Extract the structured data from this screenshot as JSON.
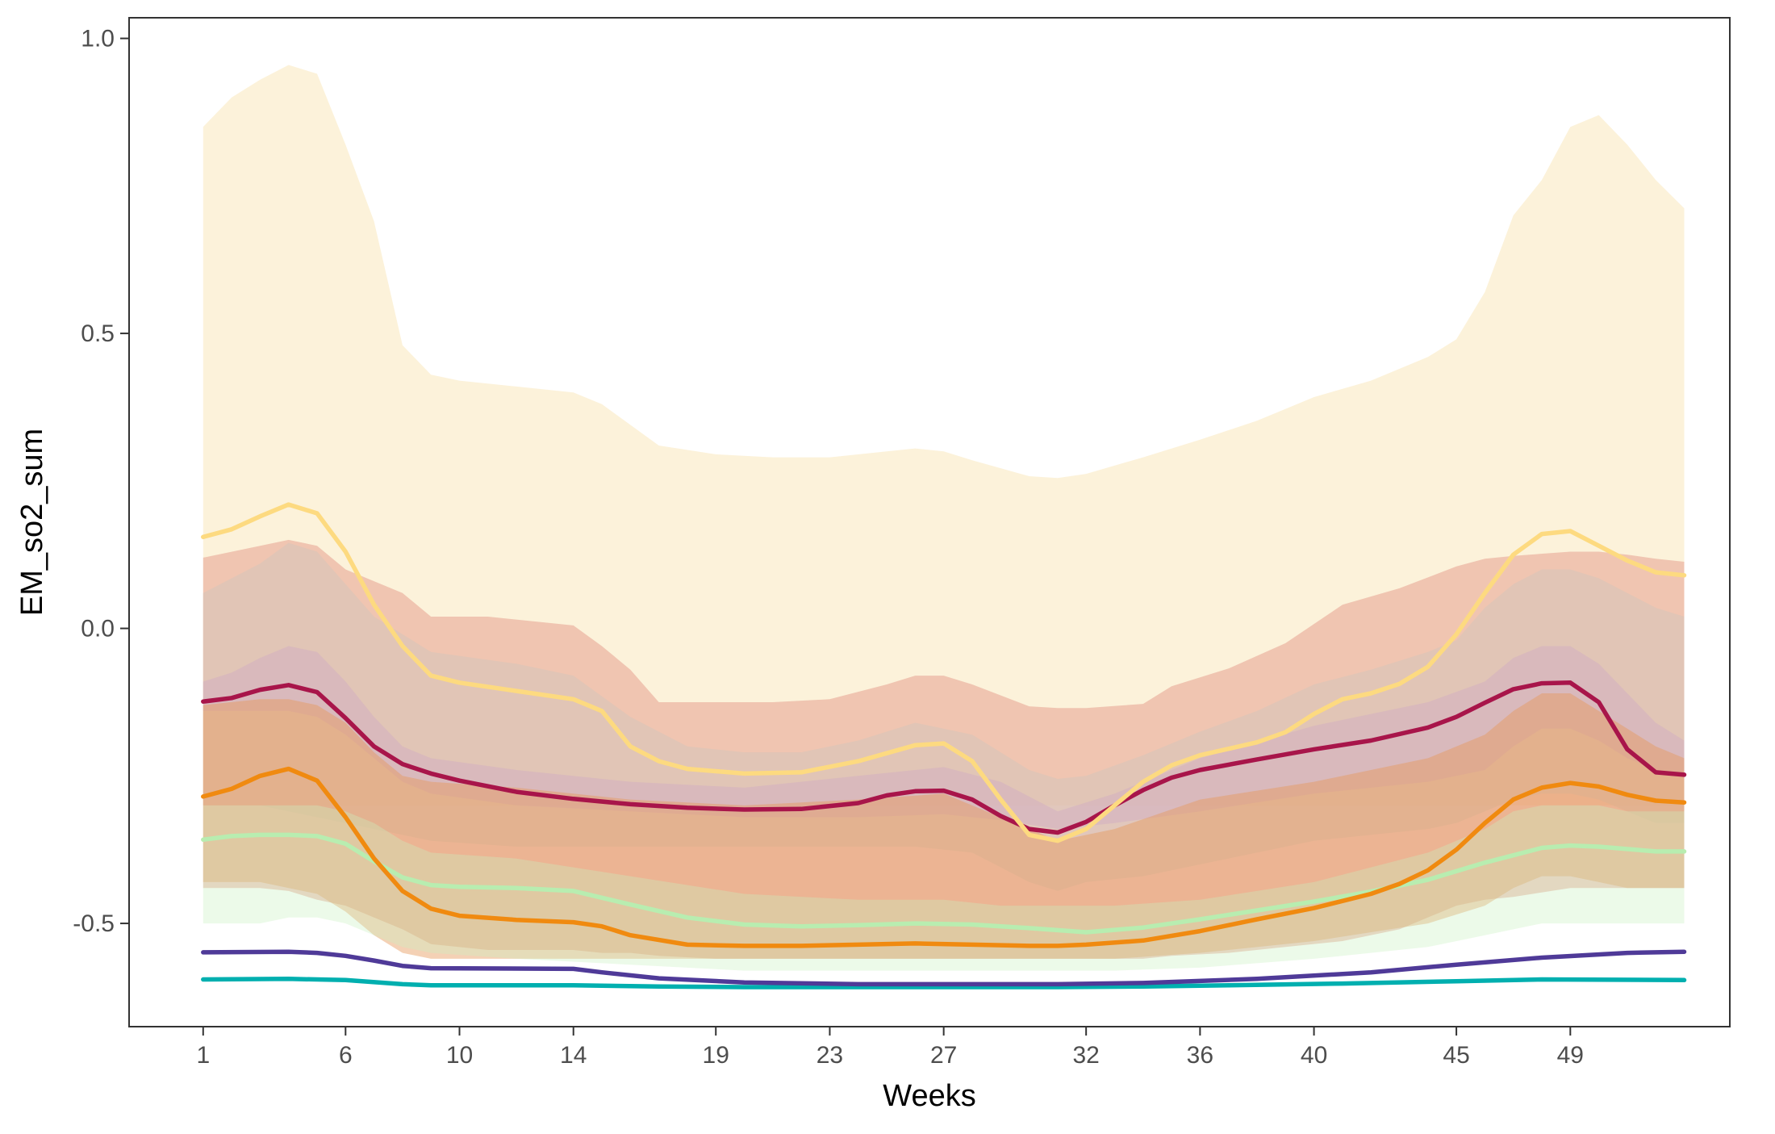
{
  "chart_data": {
    "type": "line",
    "title": "",
    "xlabel": "Weeks",
    "ylabel": "EM_so2_sum",
    "xlim": [
      -1.6,
      54.6
    ],
    "ylim": [
      -0.675,
      1.035
    ],
    "x_ticks": [
      1,
      6,
      10,
      14,
      19,
      23,
      27,
      32,
      36,
      40,
      45,
      49
    ],
    "y_ticks": [
      1.0,
      0.5,
      0.0,
      -0.5
    ],
    "y_tick_labels": [
      "1.0",
      "0.5",
      "0.0",
      "-0.5"
    ],
    "grid": false,
    "legend": "none",
    "bands": [
      {
        "color": "#FCF0D4",
        "opacity": 0.85,
        "x": [
          1,
          2,
          3,
          4,
          5,
          6,
          7,
          8,
          9,
          10,
          12,
          14,
          15,
          17,
          19,
          21,
          23,
          25,
          26,
          27,
          28,
          30,
          31,
          32,
          34,
          36,
          38,
          40,
          42,
          44,
          45,
          46,
          47,
          48,
          49,
          50,
          51,
          52,
          53
        ],
        "upper": [
          0.85,
          0.9,
          0.93,
          0.955,
          0.94,
          0.82,
          0.69,
          0.48,
          0.43,
          0.42,
          0.41,
          0.4,
          0.38,
          0.31,
          0.295,
          0.29,
          0.29,
          0.3,
          0.305,
          0.3,
          0.285,
          0.258,
          0.255,
          0.262,
          0.29,
          0.32,
          0.352,
          0.392,
          0.42,
          0.46,
          0.49,
          0.57,
          0.7,
          0.76,
          0.85,
          0.87,
          0.82,
          0.76,
          0.712
        ],
        "lower": [
          -0.3,
          -0.3,
          -0.3,
          -0.3,
          -0.3,
          -0.3,
          -0.3,
          -0.3,
          -0.3,
          -0.3,
          -0.3,
          -0.3,
          -0.3,
          -0.3,
          -0.3,
          -0.3,
          -0.3,
          -0.3,
          -0.3,
          -0.3,
          -0.3,
          -0.3,
          -0.3,
          -0.3,
          -0.3,
          -0.3,
          -0.3,
          -0.3,
          -0.3,
          -0.3,
          -0.3,
          -0.3,
          -0.3,
          -0.3,
          -0.3,
          -0.3,
          -0.3,
          -0.3,
          -0.3
        ]
      },
      {
        "color": "#E6A090",
        "opacity": 0.55,
        "x": [
          1,
          3,
          4,
          5,
          6,
          8,
          9,
          11,
          14,
          15,
          16,
          17,
          19,
          21,
          23,
          25,
          26,
          27,
          28,
          30,
          31,
          32,
          34,
          35,
          37,
          39,
          41,
          43,
          45,
          46,
          47,
          49,
          50,
          51,
          52,
          53
        ],
        "upper": [
          0.12,
          0.14,
          0.15,
          0.14,
          0.1,
          0.06,
          0.02,
          0.02,
          0.005,
          -0.03,
          -0.07,
          -0.125,
          -0.125,
          -0.125,
          -0.12,
          -0.095,
          -0.08,
          -0.08,
          -0.095,
          -0.132,
          -0.135,
          -0.135,
          -0.128,
          -0.098,
          -0.068,
          -0.025,
          0.04,
          0.068,
          0.105,
          0.118,
          0.123,
          0.13,
          0.13,
          0.125,
          0.118,
          0.113
        ],
        "lower": [
          -0.44,
          -0.44,
          -0.445,
          -0.46,
          -0.47,
          -0.51,
          -0.535,
          -0.545,
          -0.545,
          -0.55,
          -0.55,
          -0.555,
          -0.56,
          -0.56,
          -0.56,
          -0.56,
          -0.56,
          -0.56,
          -0.56,
          -0.56,
          -0.56,
          -0.56,
          -0.56,
          -0.555,
          -0.55,
          -0.54,
          -0.53,
          -0.51,
          -0.47,
          -0.46,
          -0.455,
          -0.44,
          -0.44,
          -0.44,
          -0.44,
          -0.44
        ]
      },
      {
        "color": "#D9C4B8",
        "opacity": 0.65,
        "x": [
          1,
          3,
          4,
          5,
          7,
          9,
          12,
          14,
          16,
          18,
          20,
          22,
          24,
          26,
          28,
          30,
          31,
          32,
          34,
          36,
          38,
          40,
          42,
          44,
          45,
          46,
          47,
          48,
          49,
          50,
          51,
          52,
          53
        ],
        "upper": [
          0.06,
          0.11,
          0.145,
          0.13,
          0.02,
          -0.04,
          -0.06,
          -0.08,
          -0.15,
          -0.2,
          -0.21,
          -0.21,
          -0.19,
          -0.16,
          -0.18,
          -0.24,
          -0.255,
          -0.25,
          -0.215,
          -0.175,
          -0.14,
          -0.095,
          -0.07,
          -0.04,
          -0.02,
          0.035,
          0.075,
          0.1,
          0.1,
          0.085,
          0.06,
          0.035,
          0.02
        ],
        "lower": [
          -0.3,
          -0.3,
          -0.31,
          -0.32,
          -0.34,
          -0.36,
          -0.37,
          -0.37,
          -0.37,
          -0.37,
          -0.37,
          -0.37,
          -0.37,
          -0.37,
          -0.38,
          -0.43,
          -0.445,
          -0.43,
          -0.42,
          -0.4,
          -0.38,
          -0.36,
          -0.35,
          -0.34,
          -0.33,
          -0.31,
          -0.29,
          -0.28,
          -0.28,
          -0.29,
          -0.31,
          -0.33,
          -0.33
        ]
      },
      {
        "color": "#D0ABC4",
        "opacity": 0.45,
        "x": [
          1,
          2,
          3,
          4,
          5,
          6,
          7,
          8,
          9,
          12,
          16,
          20,
          24,
          27,
          29,
          31,
          33,
          36,
          40,
          44,
          46,
          47,
          48,
          49,
          50,
          51,
          52,
          53
        ],
        "upper": [
          -0.09,
          -0.075,
          -0.05,
          -0.03,
          -0.04,
          -0.09,
          -0.15,
          -0.2,
          -0.22,
          -0.24,
          -0.26,
          -0.27,
          -0.25,
          -0.235,
          -0.26,
          -0.31,
          -0.28,
          -0.22,
          -0.165,
          -0.125,
          -0.09,
          -0.05,
          -0.03,
          -0.03,
          -0.06,
          -0.11,
          -0.16,
          -0.19
        ],
        "lower": [
          -0.14,
          -0.14,
          -0.14,
          -0.14,
          -0.15,
          -0.18,
          -0.22,
          -0.26,
          -0.28,
          -0.3,
          -0.31,
          -0.32,
          -0.32,
          -0.315,
          -0.325,
          -0.34,
          -0.33,
          -0.31,
          -0.28,
          -0.26,
          -0.24,
          -0.2,
          -0.17,
          -0.17,
          -0.19,
          -0.22,
          -0.24,
          -0.25
        ]
      },
      {
        "color": "#E6985C",
        "opacity": 0.45,
        "x": [
          1,
          3,
          4,
          5,
          6,
          7,
          8,
          9,
          12,
          16,
          20,
          24,
          27,
          29,
          31,
          33,
          36,
          40,
          44,
          46,
          47,
          48,
          49,
          50,
          51,
          52,
          53
        ],
        "upper": [
          -0.13,
          -0.12,
          -0.12,
          -0.13,
          -0.16,
          -0.21,
          -0.25,
          -0.26,
          -0.27,
          -0.29,
          -0.3,
          -0.29,
          -0.28,
          -0.32,
          -0.36,
          -0.34,
          -0.29,
          -0.26,
          -0.22,
          -0.18,
          -0.14,
          -0.11,
          -0.11,
          -0.14,
          -0.17,
          -0.2,
          -0.22
        ],
        "lower": [
          -0.43,
          -0.43,
          -0.44,
          -0.45,
          -0.48,
          -0.52,
          -0.55,
          -0.56,
          -0.56,
          -0.56,
          -0.56,
          -0.56,
          -0.56,
          -0.56,
          -0.56,
          -0.56,
          -0.55,
          -0.53,
          -0.5,
          -0.47,
          -0.44,
          -0.42,
          -0.42,
          -0.43,
          -0.44,
          -0.44,
          -0.44
        ]
      },
      {
        "color": "#C8F0C0",
        "opacity": 0.35,
        "x": [
          1,
          3,
          4,
          5,
          6,
          7,
          8,
          9,
          12,
          16,
          20,
          24,
          27,
          29,
          31,
          33,
          36,
          40,
          44,
          46,
          47,
          48,
          49,
          50,
          51,
          52,
          53
        ],
        "upper": [
          -0.3,
          -0.3,
          -0.3,
          -0.3,
          -0.31,
          -0.33,
          -0.36,
          -0.38,
          -0.39,
          -0.42,
          -0.45,
          -0.46,
          -0.46,
          -0.47,
          -0.47,
          -0.47,
          -0.46,
          -0.43,
          -0.38,
          -0.34,
          -0.31,
          -0.3,
          -0.3,
          -0.3,
          -0.31,
          -0.31,
          -0.31
        ],
        "lower": [
          -0.5,
          -0.5,
          -0.49,
          -0.49,
          -0.5,
          -0.52,
          -0.54,
          -0.55,
          -0.56,
          -0.57,
          -0.58,
          -0.58,
          -0.58,
          -0.58,
          -0.58,
          -0.58,
          -0.575,
          -0.56,
          -0.54,
          -0.52,
          -0.51,
          -0.5,
          -0.5,
          -0.5,
          -0.5,
          -0.5,
          -0.5
        ]
      }
    ],
    "series": [
      {
        "color": "#00AFAF",
        "x": [
          1,
          4,
          6,
          8,
          9,
          14,
          17,
          20,
          24,
          28,
          31,
          34,
          37,
          41,
          45,
          48,
          53
        ],
        "values": [
          -0.595,
          -0.594,
          -0.596,
          -0.603,
          -0.605,
          -0.605,
          -0.607,
          -0.608,
          -0.608,
          -0.608,
          -0.608,
          -0.607,
          -0.605,
          -0.602,
          -0.598,
          -0.595,
          -0.596
        ]
      },
      {
        "color": "#4F3A98",
        "x": [
          1,
          4,
          5,
          6,
          7,
          8,
          9,
          14,
          15,
          17,
          20,
          24,
          28,
          31,
          34,
          38,
          42,
          45,
          48,
          51,
          53
        ],
        "values": [
          -0.549,
          -0.548,
          -0.55,
          -0.555,
          -0.563,
          -0.572,
          -0.576,
          -0.577,
          -0.583,
          -0.593,
          -0.6,
          -0.603,
          -0.603,
          -0.603,
          -0.601,
          -0.594,
          -0.583,
          -0.57,
          -0.558,
          -0.55,
          -0.548
        ]
      },
      {
        "color": "#B8EDB0",
        "x": [
          1,
          2,
          3,
          4,
          5,
          6,
          7,
          8,
          9,
          10,
          12,
          14,
          16,
          18,
          20,
          22,
          24,
          26,
          28,
          30,
          32,
          34,
          36,
          38,
          40,
          42,
          44,
          46,
          48,
          49,
          50,
          52,
          53
        ],
        "values": [
          -0.358,
          -0.352,
          -0.35,
          -0.35,
          -0.352,
          -0.365,
          -0.395,
          -0.422,
          -0.435,
          -0.438,
          -0.44,
          -0.445,
          -0.468,
          -0.49,
          -0.502,
          -0.505,
          -0.503,
          -0.5,
          -0.502,
          -0.508,
          -0.515,
          -0.507,
          -0.493,
          -0.478,
          -0.463,
          -0.446,
          -0.426,
          -0.397,
          -0.372,
          -0.368,
          -0.37,
          -0.378,
          -0.378
        ]
      },
      {
        "color": "#F08A10",
        "x": [
          1,
          2,
          3,
          4,
          5,
          6,
          7,
          8,
          9,
          10,
          12,
          14,
          15,
          16,
          18,
          20,
          22,
          24,
          26,
          28,
          30,
          31,
          32,
          34,
          36,
          38,
          40,
          42,
          43,
          44,
          45,
          46,
          47,
          48,
          49,
          50,
          51,
          52,
          53
        ],
        "values": [
          -0.285,
          -0.272,
          -0.25,
          -0.238,
          -0.258,
          -0.32,
          -0.39,
          -0.445,
          -0.475,
          -0.487,
          -0.494,
          -0.498,
          -0.505,
          -0.52,
          -0.536,
          -0.538,
          -0.538,
          -0.536,
          -0.534,
          -0.536,
          -0.538,
          -0.538,
          -0.536,
          -0.529,
          -0.513,
          -0.493,
          -0.474,
          -0.45,
          -0.433,
          -0.41,
          -0.375,
          -0.33,
          -0.29,
          -0.27,
          -0.262,
          -0.268,
          -0.282,
          -0.292,
          -0.295
        ]
      },
      {
        "color": "#A8154A",
        "x": [
          1,
          2,
          3,
          4,
          5,
          6,
          7,
          8,
          9,
          10,
          12,
          14,
          16,
          18,
          20,
          22,
          24,
          25,
          26,
          27,
          28,
          29,
          30,
          31,
          32,
          33,
          34,
          35,
          36,
          38,
          40,
          42,
          44,
          45,
          46,
          47,
          48,
          49,
          50,
          51,
          52,
          53
        ],
        "values": [
          -0.124,
          -0.118,
          -0.104,
          -0.096,
          -0.108,
          -0.152,
          -0.2,
          -0.23,
          -0.246,
          -0.258,
          -0.277,
          -0.289,
          -0.298,
          -0.304,
          -0.307,
          -0.306,
          -0.296,
          -0.283,
          -0.276,
          -0.275,
          -0.29,
          -0.318,
          -0.34,
          -0.346,
          -0.328,
          -0.3,
          -0.274,
          -0.253,
          -0.24,
          -0.222,
          -0.205,
          -0.19,
          -0.168,
          -0.15,
          -0.126,
          -0.103,
          -0.093,
          -0.092,
          -0.125,
          -0.205,
          -0.244,
          -0.248
        ]
      },
      {
        "color": "#FDDA80",
        "x": [
          1,
          2,
          3,
          4,
          5,
          6,
          7,
          8,
          9,
          10,
          12,
          14,
          15,
          16,
          17,
          18,
          20,
          22,
          24,
          26,
          27,
          28,
          29,
          30,
          31,
          32,
          33,
          34,
          35,
          36,
          38,
          39,
          40,
          41,
          42,
          43,
          44,
          45,
          46,
          47,
          48,
          49,
          50,
          51,
          52,
          53
        ],
        "values": [
          0.155,
          0.168,
          0.19,
          0.21,
          0.195,
          0.13,
          0.04,
          -0.03,
          -0.08,
          -0.092,
          -0.106,
          -0.12,
          -0.14,
          -0.2,
          -0.225,
          -0.238,
          -0.246,
          -0.244,
          -0.225,
          -0.198,
          -0.195,
          -0.225,
          -0.29,
          -0.35,
          -0.36,
          -0.34,
          -0.3,
          -0.26,
          -0.232,
          -0.215,
          -0.193,
          -0.176,
          -0.145,
          -0.12,
          -0.11,
          -0.094,
          -0.065,
          -0.01,
          0.06,
          0.125,
          0.16,
          0.165,
          0.14,
          0.115,
          0.095,
          0.09
        ]
      }
    ]
  }
}
